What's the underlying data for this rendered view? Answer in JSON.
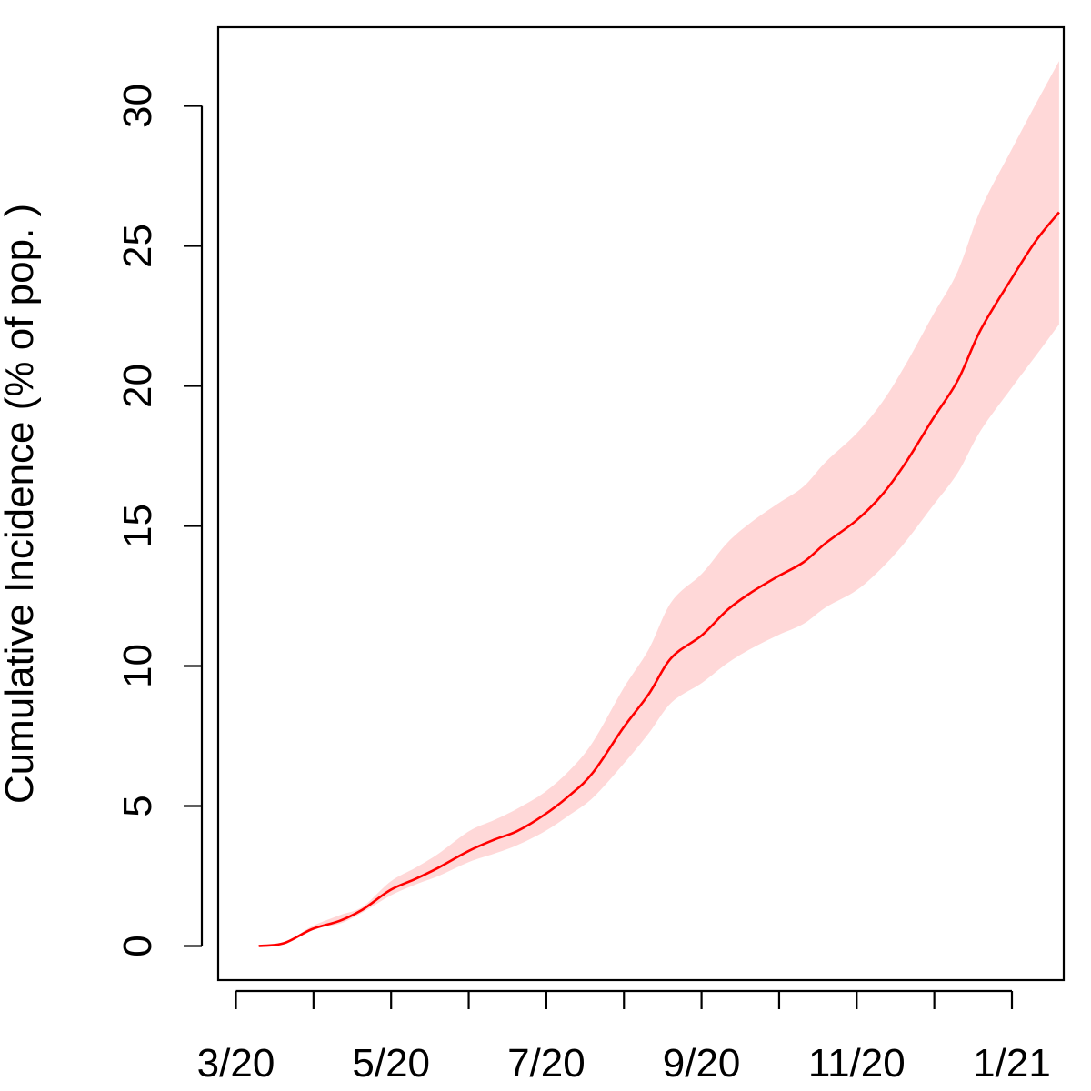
{
  "chart_data": {
    "type": "line",
    "title": "",
    "xlabel": "",
    "ylabel": "Cumulative Incidence (% of pop. )",
    "x_tick_labels": [
      "3/20",
      "5/20",
      "7/20",
      "9/20",
      "11/20",
      "1/21"
    ],
    "x_ticks_months": 11,
    "y_ticks": [
      0,
      5,
      10,
      15,
      20,
      25,
      30
    ],
    "ylim": [
      -1.2,
      32.9
    ],
    "grid": false,
    "legend": "none",
    "series": [
      {
        "color": "#ff0000",
        "band_color": "#ffd8d8",
        "points": [
          {
            "date": "2020-03-10",
            "y": 0.0,
            "lo": 0.0,
            "hi": 0.0
          },
          {
            "date": "2020-03-20",
            "y": 0.1,
            "lo": 0.1,
            "hi": 0.1
          },
          {
            "date": "2020-03-31",
            "y": 0.6,
            "lo": 0.6,
            "hi": 0.7
          },
          {
            "date": "2020-04-11",
            "y": 0.9,
            "lo": 0.8,
            "hi": 1.1
          },
          {
            "date": "2020-04-20",
            "y": 1.3,
            "lo": 1.2,
            "hi": 1.4
          },
          {
            "date": "2020-05-01",
            "y": 2.0,
            "lo": 1.8,
            "hi": 2.3
          },
          {
            "date": "2020-05-11",
            "y": 2.4,
            "lo": 2.2,
            "hi": 2.8
          },
          {
            "date": "2020-05-20",
            "y": 2.8,
            "lo": 2.5,
            "hi": 3.3
          },
          {
            "date": "2020-06-01",
            "y": 3.4,
            "lo": 3.0,
            "hi": 4.1
          },
          {
            "date": "2020-06-11",
            "y": 3.8,
            "lo": 3.3,
            "hi": 4.5
          },
          {
            "date": "2020-06-20",
            "y": 4.1,
            "lo": 3.6,
            "hi": 4.9
          },
          {
            "date": "2020-07-01",
            "y": 4.7,
            "lo": 4.1,
            "hi": 5.5
          },
          {
            "date": "2020-07-11",
            "y": 5.4,
            "lo": 4.7,
            "hi": 6.3
          },
          {
            "date": "2020-07-20",
            "y": 6.2,
            "lo": 5.3,
            "hi": 7.3
          },
          {
            "date": "2020-08-01",
            "y": 7.8,
            "lo": 6.5,
            "hi": 9.2
          },
          {
            "date": "2020-08-11",
            "y": 9.0,
            "lo": 7.6,
            "hi": 10.6
          },
          {
            "date": "2020-08-20",
            "y": 10.3,
            "lo": 8.7,
            "hi": 12.3
          },
          {
            "date": "2020-09-01",
            "y": 11.1,
            "lo": 9.4,
            "hi": 13.3
          },
          {
            "date": "2020-09-11",
            "y": 12.0,
            "lo": 10.1,
            "hi": 14.4
          },
          {
            "date": "2020-09-20",
            "y": 12.6,
            "lo": 10.6,
            "hi": 15.1
          },
          {
            "date": "2020-10-01",
            "y": 13.2,
            "lo": 11.1,
            "hi": 15.8
          },
          {
            "date": "2020-10-11",
            "y": 13.7,
            "lo": 11.5,
            "hi": 16.4
          },
          {
            "date": "2020-10-20",
            "y": 14.4,
            "lo": 12.1,
            "hi": 17.3
          },
          {
            "date": "2020-11-01",
            "y": 15.2,
            "lo": 12.7,
            "hi": 18.3
          },
          {
            "date": "2020-11-11",
            "y": 16.1,
            "lo": 13.5,
            "hi": 19.4
          },
          {
            "date": "2020-11-20",
            "y": 17.2,
            "lo": 14.4,
            "hi": 20.7
          },
          {
            "date": "2020-12-01",
            "y": 18.8,
            "lo": 15.7,
            "hi": 22.5
          },
          {
            "date": "2020-12-11",
            "y": 20.2,
            "lo": 16.9,
            "hi": 24.1
          },
          {
            "date": "2020-12-20",
            "y": 22.0,
            "lo": 18.4,
            "hi": 26.3
          },
          {
            "date": "2021-01-01",
            "y": 23.8,
            "lo": 19.9,
            "hi": 28.4
          },
          {
            "date": "2021-01-11",
            "y": 25.2,
            "lo": 21.1,
            "hi": 30.1
          },
          {
            "date": "2021-01-20",
            "y": 26.2,
            "lo": 22.2,
            "hi": 31.6
          }
        ]
      }
    ]
  }
}
